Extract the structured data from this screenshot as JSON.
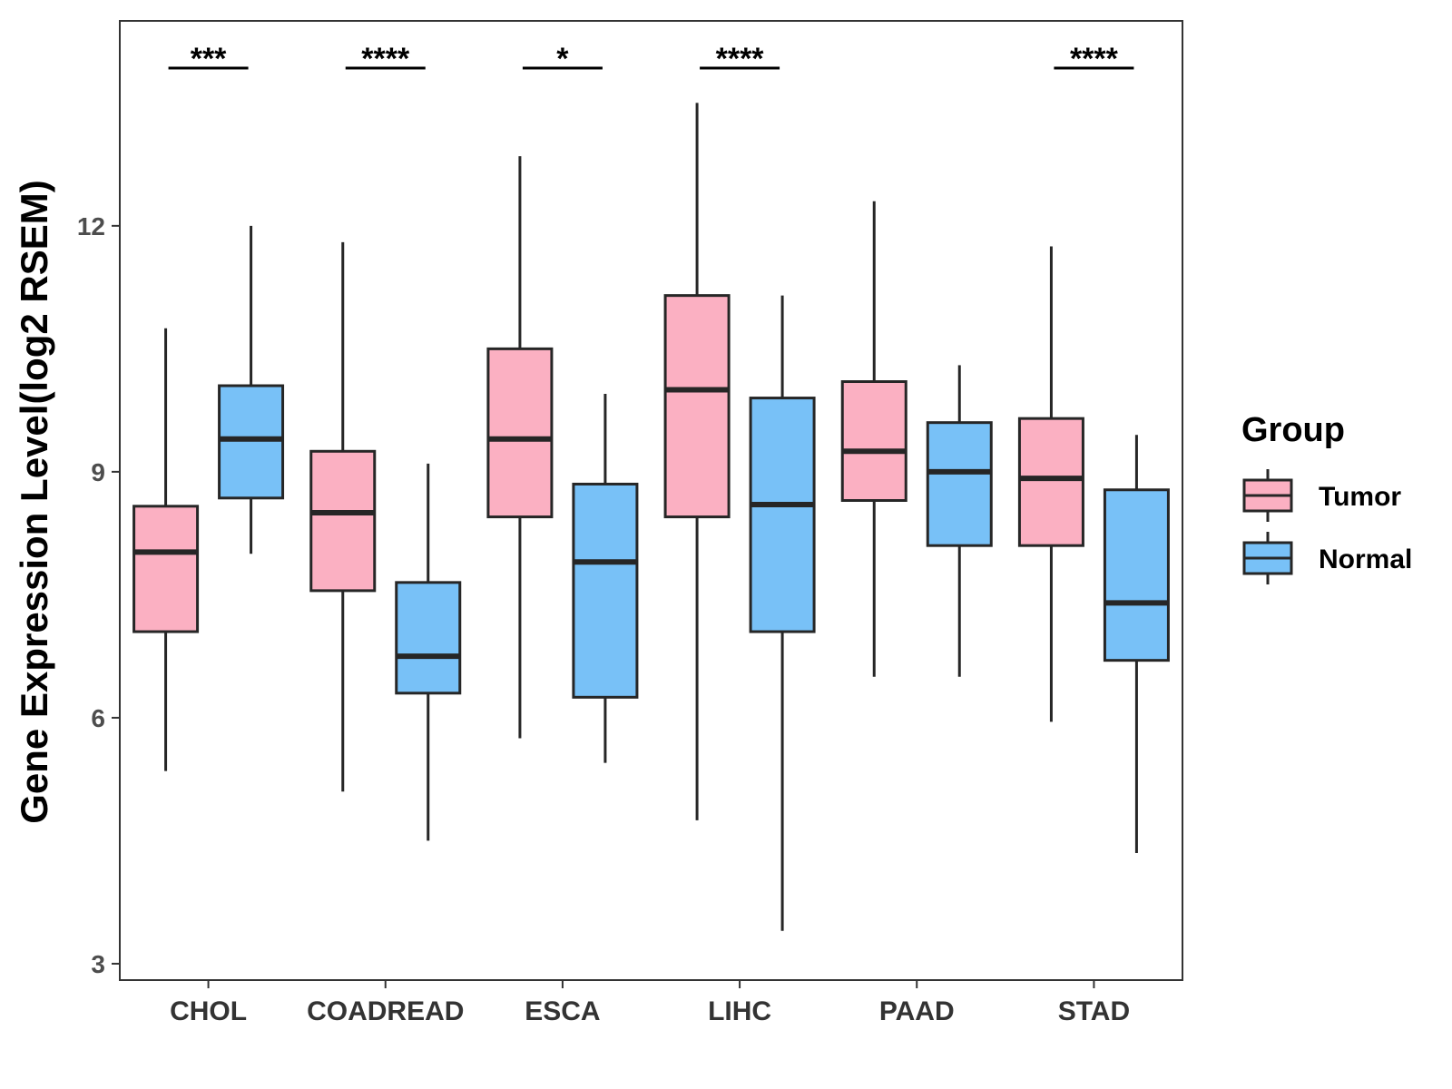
{
  "chart_data": {
    "type": "boxplot",
    "title": "",
    "xlabel": "",
    "ylabel": "Gene Expression Level(log2 RSEM)",
    "ylim": [
      2.8,
      14.5
    ],
    "yticks": [
      3,
      6,
      9,
      12
    ],
    "categories": [
      "CHOL",
      "COADREAD",
      "ESCA",
      "LIHC",
      "PAAD",
      "STAD"
    ],
    "legend": {
      "title": "Group",
      "position": "right",
      "entries": [
        {
          "name": "Tumor",
          "color": "#FBB0C2"
        },
        {
          "name": "Normal",
          "color": "#78C1F7"
        }
      ]
    },
    "series": [
      {
        "name": "Tumor",
        "color": "#FBB0C2",
        "boxes": [
          {
            "min": 5.35,
            "q1": 7.05,
            "median": 8.02,
            "q3": 8.58,
            "max": 10.75
          },
          {
            "min": 5.1,
            "q1": 7.55,
            "median": 8.5,
            "q3": 9.25,
            "max": 11.8
          },
          {
            "min": 5.75,
            "q1": 8.45,
            "median": 9.4,
            "q3": 10.5,
            "max": 12.85
          },
          {
            "min": 4.75,
            "q1": 8.45,
            "median": 10.0,
            "q3": 11.15,
            "max": 13.5
          },
          {
            "min": 6.5,
            "q1": 8.65,
            "median": 9.25,
            "q3": 10.1,
            "max": 12.3
          },
          {
            "min": 5.95,
            "q1": 8.1,
            "median": 8.92,
            "q3": 9.65,
            "max": 11.75
          }
        ]
      },
      {
        "name": "Normal",
        "color": "#78C1F7",
        "boxes": [
          {
            "min": 8.0,
            "q1": 8.68,
            "median": 9.4,
            "q3": 10.05,
            "max": 12.0
          },
          {
            "min": 4.5,
            "q1": 6.3,
            "median": 6.75,
            "q3": 7.65,
            "max": 9.1
          },
          {
            "min": 5.45,
            "q1": 6.25,
            "median": 7.9,
            "q3": 8.85,
            "max": 9.95
          },
          {
            "min": 3.4,
            "q1": 7.05,
            "median": 8.6,
            "q3": 9.9,
            "max": 11.15
          },
          {
            "min": 6.5,
            "q1": 8.1,
            "median": 9.0,
            "q3": 9.6,
            "max": 10.3
          },
          {
            "min": 4.35,
            "q1": 6.7,
            "median": 7.4,
            "q3": 8.78,
            "max": 9.45
          }
        ]
      }
    ],
    "significance": [
      "***",
      "****",
      "*",
      "****",
      "",
      "****"
    ]
  }
}
